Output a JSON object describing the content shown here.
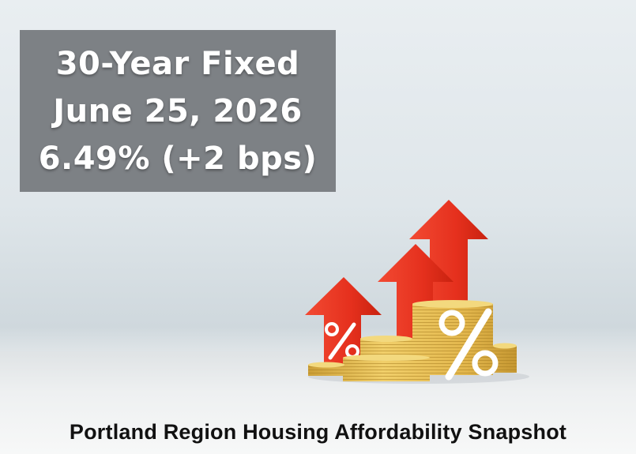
{
  "info_box": {
    "line1": "30-Year Fixed",
    "line2": "June 25, 2026",
    "line3": "6.49% (+2 bps)"
  },
  "caption": "Portland Region Housing Affordability Snapshot",
  "colors": {
    "arrow_red": "#ea2e1c",
    "coin_gold": "#e4bb4f",
    "box_gray": "#7d8185"
  },
  "icons": [
    "up-arrow-icon",
    "percent-icon",
    "coin-stack-icon"
  ]
}
